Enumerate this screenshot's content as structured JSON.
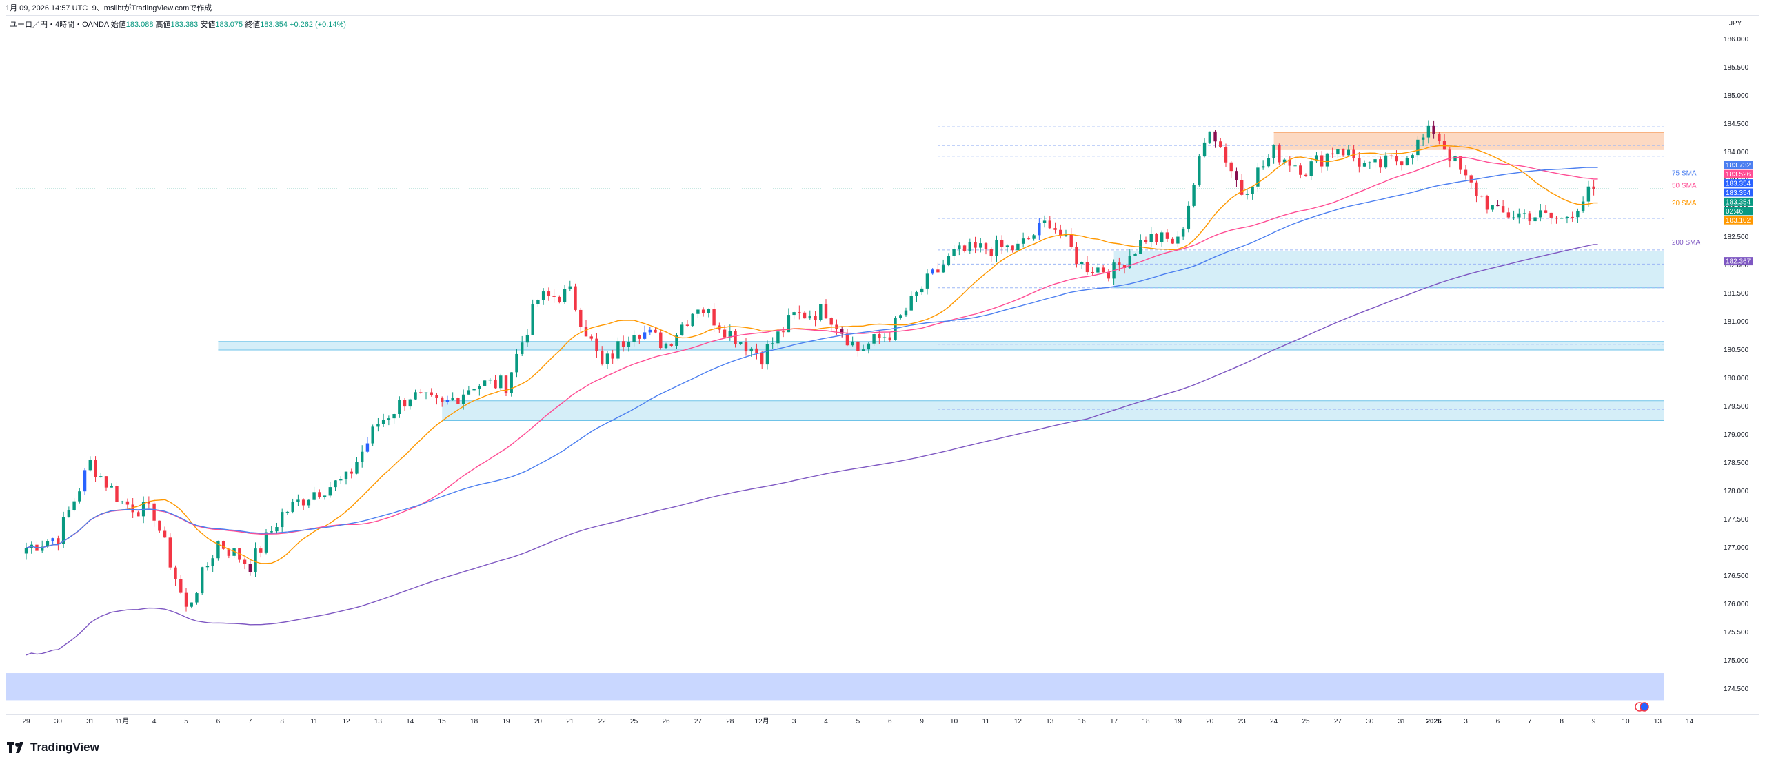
{
  "caption": "1月 09, 2026 14:57 UTC+9、msilbtがTradingView.comで作成",
  "symbol": {
    "name": "ユーロ／円・4時間・OANDA",
    "open_label": "始値",
    "open": "183.088",
    "high_label": "高値",
    "high": "183.383",
    "low_label": "安値",
    "low": "183.075",
    "close_label": "終値",
    "close": "183.354",
    "change": "+0.262 (+0.14%)"
  },
  "currency": "JPY",
  "logo_text": "TradingView",
  "colors": {
    "up": "#089981",
    "down": "#f23645",
    "up_alt": "#2962ff",
    "sma20": "#ff9800",
    "sma50": "#ff4d94",
    "sma75": "#4c7ff0",
    "sma200": "#7e57c2",
    "zone": "#d5eef8",
    "zone_red": "#fcd9c2",
    "zone_bottom": "#c9d7ff"
  },
  "chart_data": {
    "type": "candlestick",
    "title": "ユーロ／円・4時間・OANDA",
    "ylim": [
      174.3,
      186.2
    ],
    "y_ticks": [
      "186.000",
      "185.500",
      "185.000",
      "184.500",
      "184.000",
      "183.500",
      "183.000",
      "182.500",
      "182.000",
      "181.500",
      "181.000",
      "180.500",
      "180.000",
      "179.500",
      "179.000",
      "178.500",
      "178.000",
      "177.500",
      "177.000",
      "176.500",
      "176.000",
      "175.500",
      "175.000",
      "174.500"
    ],
    "x_ticks": [
      "29",
      "30",
      "31",
      "11月",
      "4",
      "5",
      "6",
      "7",
      "8",
      "11",
      "12",
      "13",
      "14",
      "15",
      "18",
      "19",
      "20",
      "21",
      "22",
      "25",
      "26",
      "27",
      "28",
      "12月",
      "3",
      "4",
      "5",
      "6",
      "9",
      "10",
      "11",
      "12",
      "13",
      "16",
      "17",
      "18",
      "19",
      "20",
      "23",
      "24",
      "25",
      "27",
      "30",
      "31",
      "2026",
      "3",
      "6",
      "7",
      "8",
      "9",
      "10",
      "13",
      "14"
    ],
    "anchors": [
      {
        "x": "29",
        "c": 177.0
      },
      {
        "x": "30",
        "c": 177.2
      },
      {
        "x": "31",
        "c": 178.5
      },
      {
        "x": "11月",
        "c": 177.8
      },
      {
        "x": "4",
        "c": 177.6
      },
      {
        "x": "5",
        "c": 175.9
      },
      {
        "x": "6",
        "c": 177.1
      },
      {
        "x": "7",
        "c": 176.7
      },
      {
        "x": "8",
        "c": 177.6
      },
      {
        "x": "11",
        "c": 178.0
      },
      {
        "x": "12",
        "c": 178.2
      },
      {
        "x": "13",
        "c": 179.2
      },
      {
        "x": "14",
        "c": 179.7
      },
      {
        "x": "15",
        "c": 179.5
      },
      {
        "x": "18",
        "c": 179.9
      },
      {
        "x": "19",
        "c": 179.9
      },
      {
        "x": "20",
        "c": 181.4
      },
      {
        "x": "21",
        "c": 181.5
      },
      {
        "x": "22",
        "c": 180.2
      },
      {
        "x": "25",
        "c": 180.9
      },
      {
        "x": "26",
        "c": 180.6
      },
      {
        "x": "27",
        "c": 181.3
      },
      {
        "x": "28",
        "c": 180.8
      },
      {
        "x": "12月",
        "c": 180.4
      },
      {
        "x": "3",
        "c": 181.1
      },
      {
        "x": "4",
        "c": 181.2
      },
      {
        "x": "5",
        "c": 180.5
      },
      {
        "x": "6",
        "c": 180.8
      },
      {
        "x": "9",
        "c": 181.6
      },
      {
        "x": "10",
        "c": 182.2
      },
      {
        "x": "11",
        "c": 182.3
      },
      {
        "x": "12",
        "c": 182.3
      },
      {
        "x": "13",
        "c": 182.8
      },
      {
        "x": "16",
        "c": 182.0
      },
      {
        "x": "17",
        "c": 181.9
      },
      {
        "x": "18",
        "c": 182.5
      },
      {
        "x": "19",
        "c": 182.4
      },
      {
        "x": "20",
        "c": 184.5
      },
      {
        "x": "23",
        "c": 183.3
      },
      {
        "x": "24",
        "c": 184.0
      },
      {
        "x": "25",
        "c": 183.7
      },
      {
        "x": "27",
        "c": 184.1
      },
      {
        "x": "30",
        "c": 183.7
      },
      {
        "x": "31",
        "c": 183.9
      },
      {
        "x": "2026",
        "c": 184.4
      },
      {
        "x": "3",
        "c": 183.5
      },
      {
        "x": "6",
        "c": 182.9
      },
      {
        "x": "7",
        "c": 182.9
      },
      {
        "x": "8",
        "c": 182.8
      },
      {
        "x": "9",
        "c": 183.35
      }
    ],
    "last_x": "9",
    "series": [
      {
        "name": "20 SMA",
        "color": "#ff9800",
        "value": 183.102
      },
      {
        "name": "50 SMA",
        "color": "#ff4d94",
        "value": 183.526
      },
      {
        "name": "75 SMA",
        "color": "#4c7ff0",
        "value": 183.732
      },
      {
        "name": "200 SMA",
        "color": "#7e57c2",
        "value": 182.367
      }
    ],
    "price_tags": [
      {
        "text": "183.732",
        "value": 183.732,
        "color": "#4c7ff0"
      },
      {
        "text": "183.526",
        "value": 183.526,
        "color": "#ff4d94"
      },
      {
        "text": "183.354",
        "value": 183.354,
        "color": "#2962ff"
      },
      {
        "text": "183.354",
        "value": 183.354,
        "color": "#2962ff"
      },
      {
        "text": "183.354",
        "value": 183.354,
        "color": "#089981"
      },
      {
        "text": "02:46",
        "value": 183.354,
        "color": "#089981"
      },
      {
        "text": "183.102",
        "value": 183.102,
        "color": "#ff9800"
      },
      {
        "text": "182.367",
        "value": 182.367,
        "color": "#7e57c2"
      }
    ],
    "zones": [
      {
        "y1": 184.35,
        "y2": 184.05,
        "from": "24",
        "color": "red"
      },
      {
        "y1": 182.25,
        "y2": 181.6,
        "from": "17",
        "color": "blue"
      },
      {
        "y1": 180.65,
        "y2": 180.5,
        "from": "6",
        "color": "blue"
      },
      {
        "y1": 179.6,
        "y2": 179.25,
        "from": "15",
        "color": "blue"
      },
      {
        "y1": 174.78,
        "y2": 174.3,
        "from": "29",
        "color": "bottom"
      }
    ],
    "hlines": [
      184.45,
      184.12,
      183.93,
      182.83,
      182.75,
      182.27,
      182.02,
      181.6,
      181.0,
      180.6,
      179.45
    ],
    "grid": false,
    "legend": "inline-right"
  }
}
